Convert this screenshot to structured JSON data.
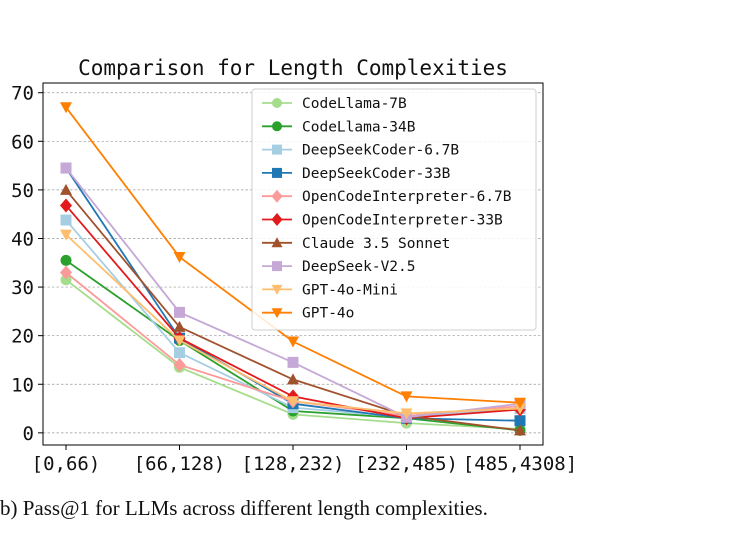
{
  "caption": "b) Pass@1 for LLMs across different length complexities.",
  "chart_data": {
    "type": "line",
    "title": "Comparison for Length Complexities",
    "xlabel": "",
    "ylabel": "",
    "categories": [
      "[0,66)",
      "[66,128)",
      "[128,232)",
      "[232,485)",
      "[485,4308]"
    ],
    "ylim": [
      -2.5,
      72
    ],
    "yticks": [
      0,
      10,
      20,
      30,
      40,
      50,
      60,
      70
    ],
    "grid": true,
    "legend_position": "top-right",
    "series": [
      {
        "name": "CodeLlama-7B",
        "color": "#a6dd8c",
        "marker": "circle",
        "values": [
          31.5,
          13.5,
          3.8,
          2.0,
          0.8
        ]
      },
      {
        "name": "CodeLlama-34B",
        "color": "#2ca02c",
        "marker": "circle",
        "values": [
          35.5,
          19.0,
          4.5,
          3.0,
          0.5
        ]
      },
      {
        "name": "DeepSeekCoder-6.7B",
        "color": "#a6cee3",
        "marker": "square",
        "values": [
          43.8,
          16.5,
          5.2,
          3.2,
          5.0
        ]
      },
      {
        "name": "DeepSeekCoder-33B",
        "color": "#1f78b4",
        "marker": "square",
        "values": [
          54.5,
          19.5,
          6.0,
          3.0,
          2.5
        ]
      },
      {
        "name": "OpenCodeInterpreter-6.7B",
        "color": "#fb9a99",
        "marker": "diamond",
        "values": [
          33.0,
          14.0,
          6.5,
          3.5,
          5.5
        ]
      },
      {
        "name": "OpenCodeInterpreter-33B",
        "color": "#e31a1c",
        "marker": "diamond",
        "values": [
          46.8,
          19.5,
          7.5,
          3.0,
          4.8
        ]
      },
      {
        "name": "Claude 3.5 Sonnet",
        "color": "#a0522d",
        "marker": "triangle-up",
        "values": [
          50.0,
          21.8,
          11.0,
          3.5,
          0.5
        ]
      },
      {
        "name": "DeepSeek-V2.5",
        "color": "#c5a8d6",
        "marker": "square",
        "values": [
          54.5,
          24.8,
          14.5,
          3.2,
          6.0
        ]
      },
      {
        "name": "GPT-4o-Mini",
        "color": "#fdbf6f",
        "marker": "triangle-down",
        "values": [
          40.8,
          19.0,
          6.5,
          4.0,
          5.0
        ]
      },
      {
        "name": "GPT-4o",
        "color": "#ff7f00",
        "marker": "triangle-down",
        "values": [
          67.0,
          36.2,
          18.8,
          7.5,
          6.2
        ]
      }
    ]
  }
}
